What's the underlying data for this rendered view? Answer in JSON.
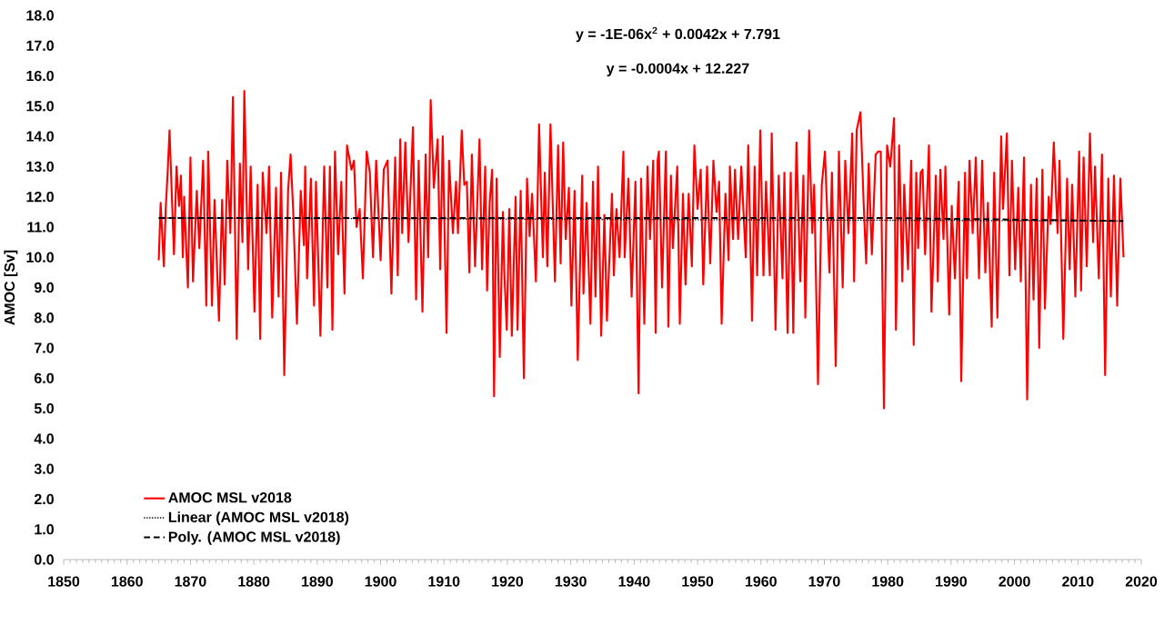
{
  "chart_data": {
    "type": "line",
    "ylabel": "AMOC [Sv]",
    "annotations": [
      "y = -1E-06x$^{2}$ + 0.0042x + 7.791",
      "y = -0.0004x + 12.227"
    ],
    "xlim": [
      1850,
      2020
    ],
    "xticks": [
      1850,
      1860,
      1870,
      1880,
      1890,
      1900,
      1910,
      1920,
      1930,
      1940,
      1950,
      1960,
      1970,
      1980,
      1990,
      2000,
      2010,
      2020
    ],
    "ylim": [
      0,
      18
    ],
    "yticks": [
      {
        "value": 0,
        "label": "0.0"
      },
      {
        "value": 1,
        "label": "1.0"
      },
      {
        "value": 2,
        "label": "2.0"
      },
      {
        "value": 3,
        "label": "3.0"
      },
      {
        "value": 4,
        "label": "4.0"
      },
      {
        "value": 5,
        "label": "5.0"
      },
      {
        "value": 6,
        "label": "6.0"
      },
      {
        "value": 7,
        "label": "7.0"
      },
      {
        "value": 8,
        "label": "8.0"
      },
      {
        "value": 9,
        "label": "9.0"
      },
      {
        "value": 10,
        "label": "10.0"
      },
      {
        "value": 11,
        "label": "11.0"
      },
      {
        "value": 12,
        "label": "12.0"
      },
      {
        "value": 13,
        "label": "13.0"
      },
      {
        "value": 14,
        "label": "14.0"
      },
      {
        "value": 15,
        "label": "15.0"
      },
      {
        "value": 16,
        "label": "16.0"
      },
      {
        "value": 17,
        "label": "17.0"
      },
      {
        "value": 18,
        "label": "18.0"
      }
    ],
    "legend": "bottom left",
    "marker": "none",
    "grid": false,
    "series": [
      {
        "name": "AMOC MSL v2018",
        "color": "#ff0000",
        "line_style": "solid",
        "x": [
          1865.0,
          1865.3,
          1865.8,
          1866.1,
          1866.4,
          1866.7,
          1867.4,
          1867.8,
          1868.2,
          1868.5,
          1868.8,
          1869.0,
          1869.6,
          1870.0,
          1870.4,
          1871.0,
          1871.4,
          1872.0,
          1872.5,
          1872.8,
          1873.4,
          1873.8,
          1874.5,
          1875.0,
          1875.4,
          1875.8,
          1876.3,
          1876.7,
          1877.3,
          1877.8,
          1878.2,
          1878.5,
          1879.1,
          1879.5,
          1880.1,
          1880.6,
          1881.0,
          1881.4,
          1882.0,
          1882.4,
          1882.9,
          1883.5,
          1883.9,
          1884.3,
          1884.8,
          1885.4,
          1885.8,
          1886.2,
          1886.8,
          1887.4,
          1887.9,
          1888.1,
          1888.4,
          1889.0,
          1889.5,
          1889.8,
          1890.5,
          1891.1,
          1891.6,
          1892.0,
          1892.4,
          1892.8,
          1893.3,
          1893.8,
          1894.3,
          1894.7,
          1895.4,
          1895.8,
          1896.2,
          1896.7,
          1897.2,
          1897.8,
          1898.3,
          1898.8,
          1899.3,
          1900.0,
          1900.5,
          1901.1,
          1901.7,
          1902.3,
          1902.7,
          1903.1,
          1903.4,
          1903.9,
          1904.4,
          1905.1,
          1905.6,
          1906.0,
          1906.6,
          1907.1,
          1907.5,
          1907.9,
          1908.4,
          1909.0,
          1909.4,
          1909.8,
          1910.4,
          1910.8,
          1911.4,
          1911.9,
          1912.2,
          1912.8,
          1913.2,
          1913.6,
          1914.0,
          1914.4,
          1914.9,
          1915.6,
          1916.0,
          1916.5,
          1916.8,
          1917.2,
          1917.6,
          1917.9,
          1918.3,
          1918.8,
          1919.3,
          1919.5,
          1919.9,
          1920.3,
          1920.7,
          1921.3,
          1921.6,
          1922.1,
          1922.6,
          1923.1,
          1923.5,
          1923.9,
          1924.5,
          1925.0,
          1925.6,
          1925.9,
          1926.3,
          1926.8,
          1927.5,
          1928.0,
          1928.4,
          1928.8,
          1929.2,
          1929.7,
          1930.1,
          1930.6,
          1931.1,
          1931.8,
          1932.0,
          1932.5,
          1933.1,
          1933.5,
          1933.9,
          1934.3,
          1934.8,
          1935.3,
          1935.7,
          1936.5,
          1936.8,
          1937.2,
          1937.7,
          1938.3,
          1938.5,
          1939.1,
          1939.6,
          1940.2,
          1940.7,
          1941.1,
          1941.6,
          1942.1,
          1942.5,
          1943.0,
          1943.4,
          1943.7,
          1943.9,
          1944.4,
          1945.0,
          1945.4,
          1945.8,
          1946.1,
          1946.8,
          1947.2,
          1947.7,
          1948.1,
          1948.6,
          1949.1,
          1949.5,
          1950.0,
          1950.5,
          1950.9,
          1951.5,
          1952.0,
          1952.5,
          1953.0,
          1953.4,
          1953.8,
          1954.4,
          1954.9,
          1955.1,
          1955.6,
          1955.9,
          1956.4,
          1956.9,
          1957.6,
          1958.0,
          1958.6,
          1959.0,
          1959.4,
          1959.9,
          1960.4,
          1960.8,
          1961.4,
          1961.7,
          1962.3,
          1962.8,
          1963.4,
          1963.7,
          1964.2,
          1964.7,
          1965.1,
          1965.6,
          1966.2,
          1966.7,
          1967.0,
          1967.6,
          1968.1,
          1968.4,
          1969.0,
          1969.6,
          1970.1,
          1970.8,
          1971.2,
          1971.8,
          1972.3,
          1972.9,
          1973.3,
          1973.8,
          1974.4,
          1974.7,
          1975.1,
          1975.7,
          1976.2,
          1976.6,
          1977.0,
          1977.5,
          1978.1,
          1978.5,
          1978.9,
          1979.4,
          1979.9,
          1980.4,
          1981.0,
          1981.3,
          1981.8,
          1982.3,
          1982.6,
          1983.2,
          1983.7,
          1984.1,
          1984.5,
          1984.8,
          1985.2,
          1985.5,
          1985.9,
          1986.5,
          1986.9,
          1987.6,
          1987.9,
          1988.3,
          1988.8,
          1989.1,
          1989.7,
          1990.1,
          1990.6,
          1991.2,
          1991.6,
          1992.2,
          1992.5,
          1992.9,
          1993.4,
          1993.9,
          1994.4,
          1994.9,
          1995.4,
          1995.8,
          1996.4,
          1996.8,
          1997.3,
          1997.9,
          1998.2,
          1998.8,
          1999.2,
          1999.6,
          2000.1,
          2000.6,
          2001.0,
          2001.5,
          2002.0,
          2002.6,
          2003.0,
          2003.5,
          2003.9,
          2004.4,
          2004.8,
          2005.4,
          2005.7,
          2006.2,
          2006.8,
          2007.1,
          2007.7,
          2008.3,
          2008.7,
          2009.1,
          2009.6,
          2010.2,
          2010.5,
          2010.9,
          2011.4,
          2011.9,
          2012.4,
          2012.7,
          2013.3,
          2013.8,
          2014.3,
          2014.8,
          2015.2,
          2015.7,
          2016.2,
          2016.7,
          2017.2
        ],
        "values": [
          9.9,
          11.8,
          9.7,
          11.6,
          12.8,
          14.2,
          10.1,
          13.0,
          11.7,
          12.7,
          10.0,
          12.0,
          9.0,
          13.3,
          9.2,
          12.2,
          10.3,
          13.2,
          8.4,
          13.5,
          8.4,
          11.9,
          7.9,
          11.9,
          9.1,
          13.2,
          10.8,
          15.3,
          7.3,
          13.1,
          10.5,
          15.5,
          9.6,
          13.0,
          8.2,
          12.4,
          7.3,
          12.8,
          10.8,
          13.0,
          8.0,
          12.3,
          8.7,
          12.8,
          6.1,
          12.2,
          13.4,
          11.6,
          7.8,
          12.2,
          10.4,
          13.0,
          9.3,
          12.6,
          8.4,
          12.5,
          7.4,
          13.0,
          9.0,
          13.0,
          7.6,
          13.5,
          10.1,
          12.5,
          8.8,
          13.7,
          12.9,
          13.2,
          11.0,
          11.6,
          9.3,
          13.5,
          12.8,
          10.0,
          13.2,
          9.9,
          12.9,
          13.2,
          8.8,
          13.3,
          9.4,
          13.9,
          10.8,
          13.8,
          10.5,
          14.3,
          8.6,
          13.2,
          8.2,
          13.4,
          10.0,
          15.2,
          12.3,
          13.9,
          9.6,
          14.0,
          7.5,
          13.2,
          10.8,
          12.5,
          10.8,
          14.2,
          12.4,
          12.5,
          9.5,
          13.4,
          9.7,
          13.9,
          9.6,
          13.0,
          8.9,
          11.8,
          12.9,
          5.4,
          12.6,
          6.7,
          11.5,
          9.6,
          7.6,
          11.6,
          7.4,
          12.0,
          7.6,
          12.2,
          6.0,
          12.6,
          10.7,
          12.1,
          9.2,
          14.4,
          10.0,
          12.8,
          9.7,
          14.4,
          9.2,
          13.7,
          9.8,
          13.8,
          10.6,
          12.3,
          8.4,
          12.2,
          6.6,
          12.7,
          8.8,
          11.8,
          7.8,
          12.5,
          8.7,
          13.0,
          7.4,
          11.4,
          7.9,
          12.1,
          9.4,
          11.6,
          10.0,
          13.5,
          10.0,
          12.6,
          8.7,
          12.5,
          5.5,
          12.6,
          7.8,
          13.0,
          10.6,
          13.2,
          7.5,
          13.2,
          13.5,
          9.0,
          13.5,
          7.7,
          12.7,
          10.3,
          13.0,
          7.8,
          12.1,
          9.1,
          12.1,
          9.7,
          13.7,
          11.6,
          12.9,
          9.1,
          13.0,
          9.8,
          13.2,
          11.5,
          12.5,
          7.8,
          12.1,
          9.9,
          13.0,
          10.6,
          12.9,
          10.6,
          13.0,
          10.0,
          13.7,
          7.9,
          13.0,
          9.4,
          14.2,
          9.4,
          12.5,
          9.4,
          14.1,
          7.6,
          12.7,
          9.3,
          12.8,
          7.5,
          12.8,
          7.5,
          13.8,
          9.2,
          12.7,
          8.0,
          14.2,
          10.8,
          12.4,
          5.8,
          12.4,
          13.5,
          9.5,
          12.8,
          6.4,
          13.5,
          9.0,
          13.2,
          10.8,
          14.1,
          9.2,
          14.2,
          14.8,
          11.8,
          9.8,
          13.1,
          10.1,
          13.4,
          13.5,
          13.5,
          5.0,
          13.7,
          13.0,
          14.6,
          7.6,
          13.7,
          9.2,
          12.4,
          9.6,
          13.2,
          7.1,
          12.8,
          10.3,
          12.8,
          12.9,
          10.1,
          13.7,
          8.2,
          12.7,
          9.2,
          12.9,
          10.6,
          13.0,
          8.1,
          11.7,
          9.3,
          12.5,
          5.9,
          12.8,
          9.3,
          13.2,
          10.8,
          13.3,
          9.3,
          13.2,
          9.5,
          11.8,
          7.7,
          12.8,
          8.0,
          14.0,
          11.6,
          14.1,
          9.4,
          13.2,
          9.6,
          12.3,
          9.2,
          13.3,
          5.3,
          12.4,
          8.6,
          12.6,
          7.0,
          12.9,
          8.3,
          12.0,
          11.1,
          13.8,
          10.8,
          13.2,
          7.3,
          12.6,
          9.6,
          12.4,
          8.7,
          13.5,
          8.9,
          13.3,
          9.7,
          14.1,
          10.5,
          13.0,
          9.3,
          13.4,
          6.1,
          12.6,
          8.7,
          12.7,
          8.4,
          12.6,
          10.0
        ]
      },
      {
        "name": "Linear (AMOC MSL v2018)",
        "color": "#000000",
        "line_style": "dotted",
        "x": [
          1865.0,
          2017.2
        ],
        "values": [
          11.3,
          11.2
        ]
      },
      {
        "name": "Poly. (AMOC MSL v2018)",
        "color": "#000000",
        "line_style": "dashed",
        "x": [
          1865.0,
          1978.9,
          2017.2
        ],
        "values": [
          11.3,
          11.3,
          11.2
        ]
      }
    ]
  }
}
